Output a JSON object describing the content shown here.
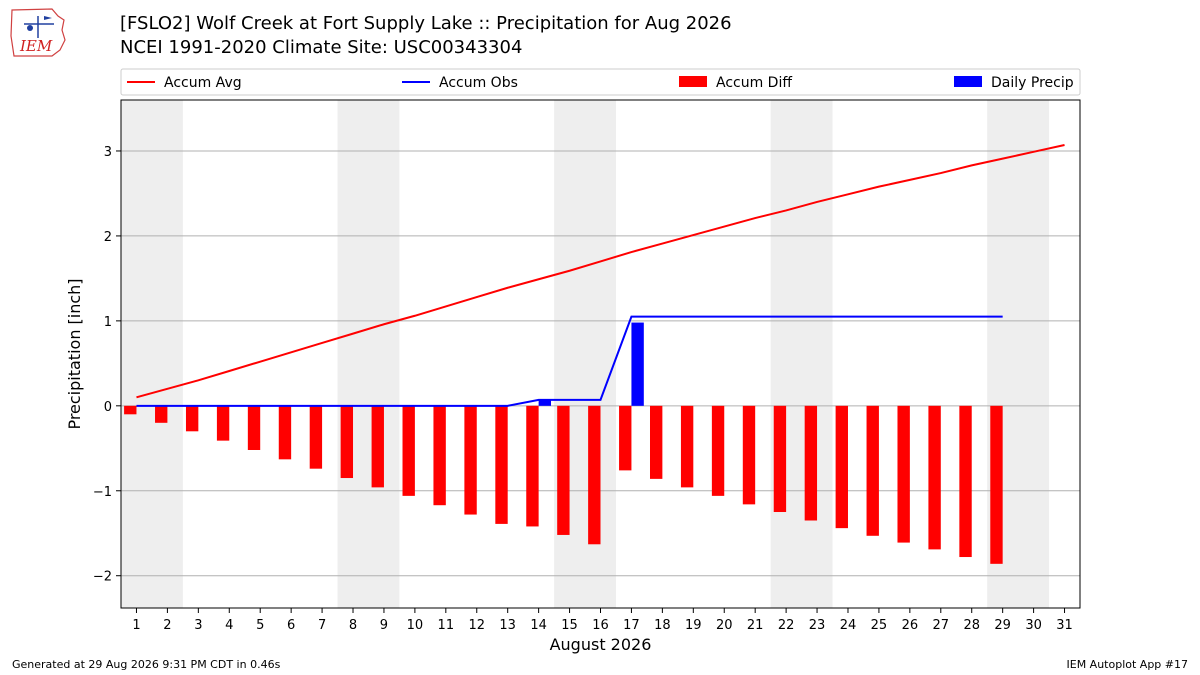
{
  "header": {
    "title": "[FSLO2] Wolf Creek at Fort Supply Lake :: Precipitation for Aug 2026",
    "subtitle": "NCEI 1991-2020 Climate Site: USC00343304",
    "logo_text": "IEM"
  },
  "footer": {
    "generated": "Generated at 29 Aug 2026 9:31 PM CDT in 0.46s",
    "app": "IEM Autoplot App #17"
  },
  "chart_data": {
    "type": "bar",
    "xlabel": "August 2026",
    "ylabel": "Precipitation [inch]",
    "xlim": [
      0.5,
      31.5
    ],
    "ylim": [
      -2.38,
      3.6
    ],
    "yticks": [
      -2,
      -1,
      0,
      1,
      2,
      3
    ],
    "ytick_labels": [
      "−2",
      "−1",
      "0",
      "1",
      "2",
      "3"
    ],
    "x_ticks": [
      1,
      2,
      3,
      4,
      5,
      6,
      7,
      8,
      9,
      10,
      11,
      12,
      13,
      14,
      15,
      16,
      17,
      18,
      19,
      20,
      21,
      22,
      23,
      24,
      25,
      26,
      27,
      28,
      29,
      30,
      31
    ],
    "grid": "horizontal",
    "legend_placement": "top, outside plot",
    "weekend_shading": [
      [
        1,
        2
      ],
      [
        8,
        9
      ],
      [
        15,
        16
      ],
      [
        22,
        23
      ],
      [
        29,
        30
      ]
    ],
    "days": [
      1,
      2,
      3,
      4,
      5,
      6,
      7,
      8,
      9,
      10,
      11,
      12,
      13,
      14,
      15,
      16,
      17,
      18,
      19,
      20,
      21,
      22,
      23,
      24,
      25,
      26,
      27,
      28,
      29,
      30,
      31
    ],
    "series": [
      {
        "name": "Accum Avg",
        "kind": "line",
        "color": "#ff0000",
        "values": [
          0.1,
          0.2,
          0.3,
          0.41,
          0.52,
          0.63,
          0.74,
          0.85,
          0.96,
          1.06,
          1.17,
          1.28,
          1.39,
          1.49,
          1.59,
          1.7,
          1.81,
          1.91,
          2.01,
          2.11,
          2.21,
          2.3,
          2.4,
          2.49,
          2.58,
          2.66,
          2.74,
          2.83,
          2.91,
          2.99,
          3.07
        ]
      },
      {
        "name": "Accum Obs",
        "kind": "line",
        "color": "#0000ff",
        "values": [
          0,
          0,
          0,
          0,
          0,
          0,
          0,
          0,
          0,
          0,
          0,
          0,
          0,
          0.07,
          0.07,
          0.07,
          1.05,
          1.05,
          1.05,
          1.05,
          1.05,
          1.05,
          1.05,
          1.05,
          1.05,
          1.05,
          1.05,
          1.05,
          1.05
        ]
      },
      {
        "name": "Accum Diff",
        "kind": "bar",
        "color": "#ff0000",
        "values": [
          -0.1,
          -0.2,
          -0.3,
          -0.41,
          -0.52,
          -0.63,
          -0.74,
          -0.85,
          -0.96,
          -1.06,
          -1.17,
          -1.28,
          -1.39,
          -1.42,
          -1.52,
          -1.63,
          -0.76,
          -0.86,
          -0.96,
          -1.06,
          -1.16,
          -1.25,
          -1.35,
          -1.44,
          -1.53,
          -1.61,
          -1.69,
          -1.78,
          -1.86
        ]
      },
      {
        "name": "Daily Precip",
        "kind": "bar",
        "color": "#0000ff",
        "values": [
          0,
          0,
          0,
          0,
          0,
          0,
          0,
          0,
          0,
          0,
          0,
          0,
          0,
          0.07,
          0,
          0,
          0.98,
          0,
          0,
          0,
          0,
          0,
          0,
          0,
          0,
          0,
          0,
          0,
          0
        ]
      }
    ]
  }
}
